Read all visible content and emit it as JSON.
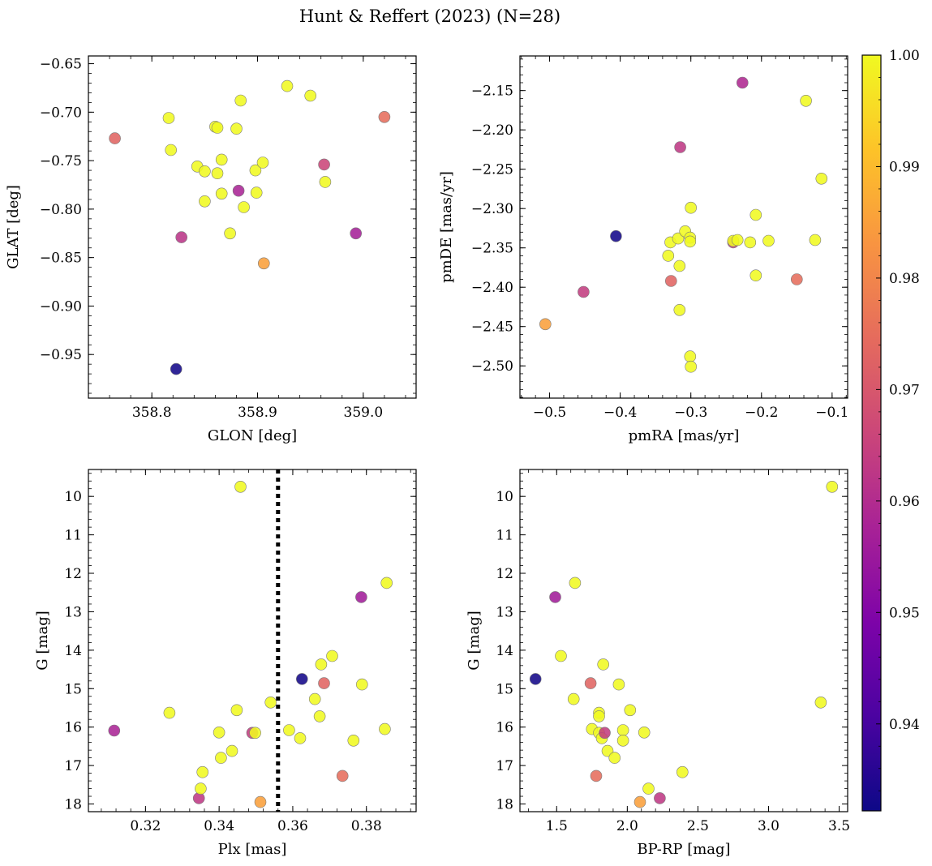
{
  "figure": {
    "title": "Hunt & Reffert (2023) (N=28)"
  },
  "colorbar": {
    "colormap": "plasma",
    "vmin": 0.9322,
    "vmax": 1.0,
    "ticks": [
      0.94,
      0.95,
      0.96,
      0.97,
      0.98,
      0.99,
      1.0
    ],
    "tick_labels": [
      "0.94",
      "0.95",
      "0.96",
      "0.97",
      "0.98",
      "0.99",
      "1.00"
    ]
  },
  "chart_data": [
    {
      "type": "scatter",
      "panel": "top-left",
      "xlabel": "GLON [deg]",
      "ylabel": "GLAT [deg]",
      "xlim": [
        358.74,
        359.05
      ],
      "ylim": [
        -0.995,
        -0.642
      ],
      "y_inverted": false,
      "xticks": [
        358.8,
        358.9,
        359.0
      ],
      "xtick_labels": [
        "358.8",
        "358.9",
        "359.0"
      ],
      "yticks": [
        -0.65,
        -0.7,
        -0.75,
        -0.8,
        -0.85,
        -0.9,
        -0.95
      ],
      "ytick_labels": [
        "−0.65",
        "−0.70",
        "−0.75",
        "−0.80",
        "−0.85",
        "−0.90",
        "−0.95"
      ],
      "points": [
        {
          "x": 358.765,
          "y": -0.727,
          "c": 0.973
        },
        {
          "x": 358.816,
          "y": -0.706,
          "c": 1.0
        },
        {
          "x": 358.818,
          "y": -0.739,
          "c": 1.0
        },
        {
          "x": 358.823,
          "y": -0.965,
          "c": 0.933
        },
        {
          "x": 358.828,
          "y": -0.829,
          "c": 0.962
        },
        {
          "x": 358.843,
          "y": -0.756,
          "c": 1.0
        },
        {
          "x": 358.85,
          "y": -0.761,
          "c": 1.0
        },
        {
          "x": 358.85,
          "y": -0.792,
          "c": 1.0
        },
        {
          "x": 358.86,
          "y": -0.715,
          "c": 1.0
        },
        {
          "x": 358.862,
          "y": -0.716,
          "c": 1.0
        },
        {
          "x": 358.862,
          "y": -0.763,
          "c": 1.0
        },
        {
          "x": 358.866,
          "y": -0.749,
          "c": 1.0
        },
        {
          "x": 358.866,
          "y": -0.784,
          "c": 1.0
        },
        {
          "x": 358.874,
          "y": -0.825,
          "c": 1.0
        },
        {
          "x": 358.88,
          "y": -0.717,
          "c": 1.0
        },
        {
          "x": 358.882,
          "y": -0.781,
          "c": 0.958
        },
        {
          "x": 358.884,
          "y": -0.688,
          "c": 1.0
        },
        {
          "x": 358.887,
          "y": -0.798,
          "c": 1.0
        },
        {
          "x": 358.898,
          "y": -0.76,
          "c": 1.0
        },
        {
          "x": 358.899,
          "y": -0.783,
          "c": 1.0
        },
        {
          "x": 358.905,
          "y": -0.752,
          "c": 1.0
        },
        {
          "x": 358.906,
          "y": -0.856,
          "c": 0.985
        },
        {
          "x": 358.928,
          "y": -0.673,
          "c": 1.0
        },
        {
          "x": 358.95,
          "y": -0.683,
          "c": 1.0
        },
        {
          "x": 358.963,
          "y": -0.754,
          "c": 0.966
        },
        {
          "x": 358.964,
          "y": -0.772,
          "c": 1.0
        },
        {
          "x": 358.993,
          "y": -0.825,
          "c": 0.957
        },
        {
          "x": 359.02,
          "y": -0.705,
          "c": 0.975
        }
      ]
    },
    {
      "type": "scatter",
      "panel": "top-right",
      "xlabel": "pmRA [mas/yr]",
      "ylabel": "pmDE [mas/yr]",
      "xlim": [
        -0.542,
        -0.078
      ],
      "ylim": [
        -2.541,
        -2.106
      ],
      "y_inverted": false,
      "xticks": [
        -0.5,
        -0.4,
        -0.3,
        -0.2,
        -0.1
      ],
      "xtick_labels": [
        "−0.5",
        "−0.4",
        "−0.3",
        "−0.2",
        "−0.1"
      ],
      "yticks": [
        -2.15,
        -2.2,
        -2.25,
        -2.3,
        -2.35,
        -2.4,
        -2.45,
        -2.5
      ],
      "ytick_labels": [
        "−2.15",
        "−2.20",
        "−2.25",
        "−2.30",
        "−2.35",
        "−2.40",
        "−2.45",
        "−2.50"
      ],
      "points": [
        {
          "x": -0.506,
          "y": -2.447,
          "c": 0.985
        },
        {
          "x": -0.452,
          "y": -2.406,
          "c": 0.964
        },
        {
          "x": -0.406,
          "y": -2.335,
          "c": 0.933
        },
        {
          "x": -0.332,
          "y": -2.36,
          "c": 1.0
        },
        {
          "x": -0.329,
          "y": -2.343,
          "c": 1.0
        },
        {
          "x": -0.328,
          "y": -2.392,
          "c": 0.973
        },
        {
          "x": -0.318,
          "y": -2.338,
          "c": 1.0
        },
        {
          "x": -0.316,
          "y": -2.373,
          "c": 1.0
        },
        {
          "x": -0.316,
          "y": -2.429,
          "c": 1.0
        },
        {
          "x": -0.315,
          "y": -2.222,
          "c": 0.963
        },
        {
          "x": -0.308,
          "y": -2.329,
          "c": 1.0
        },
        {
          "x": -0.301,
          "y": -2.337,
          "c": 1.0
        },
        {
          "x": -0.301,
          "y": -2.342,
          "c": 1.0
        },
        {
          "x": -0.3,
          "y": -2.299,
          "c": 1.0
        },
        {
          "x": -0.301,
          "y": -2.488,
          "c": 1.0
        },
        {
          "x": -0.3,
          "y": -2.501,
          "c": 1.0
        },
        {
          "x": -0.24,
          "y": -2.343,
          "c": 0.964
        },
        {
          "x": -0.24,
          "y": -2.341,
          "c": 1.0
        },
        {
          "x": -0.234,
          "y": -2.34,
          "c": 1.0
        },
        {
          "x": -0.227,
          "y": -2.14,
          "c": 0.959
        },
        {
          "x": -0.216,
          "y": -2.343,
          "c": 1.0
        },
        {
          "x": -0.208,
          "y": -2.308,
          "c": 1.0
        },
        {
          "x": -0.208,
          "y": -2.385,
          "c": 1.0
        },
        {
          "x": -0.19,
          "y": -2.341,
          "c": 1.0
        },
        {
          "x": -0.15,
          "y": -2.39,
          "c": 0.975
        },
        {
          "x": -0.137,
          "y": -2.163,
          "c": 1.0
        },
        {
          "x": -0.124,
          "y": -2.34,
          "c": 1.0
        },
        {
          "x": -0.115,
          "y": -2.262,
          "c": 1.0
        }
      ]
    },
    {
      "type": "scatter",
      "panel": "bottom-left",
      "xlabel": "Plx [mas]",
      "ylabel": "G [mag]",
      "xlim": [
        0.3045,
        0.3935
      ],
      "ylim": [
        18.2,
        9.3
      ],
      "y_inverted": true,
      "vline": {
        "x": 0.356,
        "style": "dotted"
      },
      "xticks": [
        0.32,
        0.34,
        0.36,
        0.38
      ],
      "xtick_labels": [
        "0.32",
        "0.34",
        "0.36",
        "0.38"
      ],
      "yticks": [
        10,
        11,
        12,
        13,
        14,
        15,
        16,
        17,
        18
      ],
      "ytick_labels": [
        "10",
        "11",
        "12",
        "13",
        "14",
        "15",
        "16",
        "17",
        "18"
      ],
      "points": [
        {
          "x": 0.3115,
          "y": 16.09,
          "c": 0.958
        },
        {
          "x": 0.3265,
          "y": 15.63,
          "c": 1.0
        },
        {
          "x": 0.3345,
          "y": 17.85,
          "c": 0.963
        },
        {
          "x": 0.335,
          "y": 17.6,
          "c": 1.0
        },
        {
          "x": 0.3355,
          "y": 17.17,
          "c": 1.0
        },
        {
          "x": 0.34,
          "y": 16.14,
          "c": 1.0
        },
        {
          "x": 0.3405,
          "y": 16.8,
          "c": 1.0
        },
        {
          "x": 0.3435,
          "y": 16.62,
          "c": 1.0
        },
        {
          "x": 0.3448,
          "y": 15.56,
          "c": 1.0
        },
        {
          "x": 0.3458,
          "y": 9.75,
          "c": 1.0
        },
        {
          "x": 0.349,
          "y": 16.15,
          "c": 0.964
        },
        {
          "x": 0.3498,
          "y": 16.15,
          "c": 1.0
        },
        {
          "x": 0.3512,
          "y": 17.95,
          "c": 0.985
        },
        {
          "x": 0.354,
          "y": 15.36,
          "c": 1.0
        },
        {
          "x": 0.3625,
          "y": 14.75,
          "c": 0.933
        },
        {
          "x": 0.359,
          "y": 16.08,
          "c": 1.0
        },
        {
          "x": 0.362,
          "y": 16.29,
          "c": 1.0
        },
        {
          "x": 0.366,
          "y": 15.27,
          "c": 1.0
        },
        {
          "x": 0.3673,
          "y": 15.72,
          "c": 1.0
        },
        {
          "x": 0.3677,
          "y": 14.37,
          "c": 1.0
        },
        {
          "x": 0.3685,
          "y": 14.86,
          "c": 0.973
        },
        {
          "x": 0.3707,
          "y": 14.15,
          "c": 1.0
        },
        {
          "x": 0.3735,
          "y": 17.27,
          "c": 0.975
        },
        {
          "x": 0.3765,
          "y": 16.35,
          "c": 1.0
        },
        {
          "x": 0.3786,
          "y": 12.62,
          "c": 0.956
        },
        {
          "x": 0.3788,
          "y": 14.89,
          "c": 1.0
        },
        {
          "x": 0.385,
          "y": 16.05,
          "c": 1.0
        },
        {
          "x": 0.3855,
          "y": 12.25,
          "c": 1.0
        }
      ]
    },
    {
      "type": "scatter",
      "panel": "bottom-right",
      "xlabel": "BP-RP [mag]",
      "ylabel": "G [mag]",
      "xlim": [
        1.24,
        3.56
      ],
      "ylim": [
        18.2,
        9.3
      ],
      "y_inverted": true,
      "xticks": [
        1.5,
        2.0,
        2.5,
        3.0,
        3.5
      ],
      "xtick_labels": [
        "1.5",
        "2.0",
        "2.5",
        "3.0",
        "3.5"
      ],
      "yticks": [
        10,
        11,
        12,
        13,
        14,
        15,
        16,
        17,
        18
      ],
      "ytick_labels": [
        "10",
        "11",
        "12",
        "13",
        "14",
        "15",
        "16",
        "17",
        "18"
      ],
      "points": [
        {
          "x": 1.35,
          "y": 14.75,
          "c": 0.933
        },
        {
          "x": 1.49,
          "y": 12.62,
          "c": 0.956
        },
        {
          "x": 1.53,
          "y": 14.15,
          "c": 1.0
        },
        {
          "x": 1.62,
          "y": 15.27,
          "c": 1.0
        },
        {
          "x": 1.63,
          "y": 12.25,
          "c": 1.0
        },
        {
          "x": 1.74,
          "y": 14.86,
          "c": 0.973
        },
        {
          "x": 1.75,
          "y": 16.05,
          "c": 1.0
        },
        {
          "x": 1.78,
          "y": 17.27,
          "c": 0.975
        },
        {
          "x": 1.8,
          "y": 15.63,
          "c": 1.0
        },
        {
          "x": 1.8,
          "y": 15.72,
          "c": 1.0
        },
        {
          "x": 1.8,
          "y": 16.15,
          "c": 1.0
        },
        {
          "x": 1.82,
          "y": 16.29,
          "c": 1.0
        },
        {
          "x": 1.83,
          "y": 14.37,
          "c": 1.0
        },
        {
          "x": 1.84,
          "y": 16.15,
          "c": 0.964
        },
        {
          "x": 1.86,
          "y": 16.62,
          "c": 1.0
        },
        {
          "x": 1.91,
          "y": 16.8,
          "c": 1.0
        },
        {
          "x": 1.94,
          "y": 14.89,
          "c": 1.0
        },
        {
          "x": 1.97,
          "y": 16.08,
          "c": 1.0
        },
        {
          "x": 1.97,
          "y": 16.35,
          "c": 1.0
        },
        {
          "x": 2.02,
          "y": 15.56,
          "c": 1.0
        },
        {
          "x": 2.09,
          "y": 17.95,
          "c": 0.985
        },
        {
          "x": 2.12,
          "y": 16.14,
          "c": 1.0
        },
        {
          "x": 2.15,
          "y": 17.6,
          "c": 1.0
        },
        {
          "x": 2.23,
          "y": 17.85,
          "c": 0.963
        },
        {
          "x": 2.39,
          "y": 17.17,
          "c": 1.0
        },
        {
          "x": 3.37,
          "y": 15.36,
          "c": 1.0
        },
        {
          "x": 3.45,
          "y": 9.75,
          "c": 1.0
        }
      ]
    }
  ]
}
